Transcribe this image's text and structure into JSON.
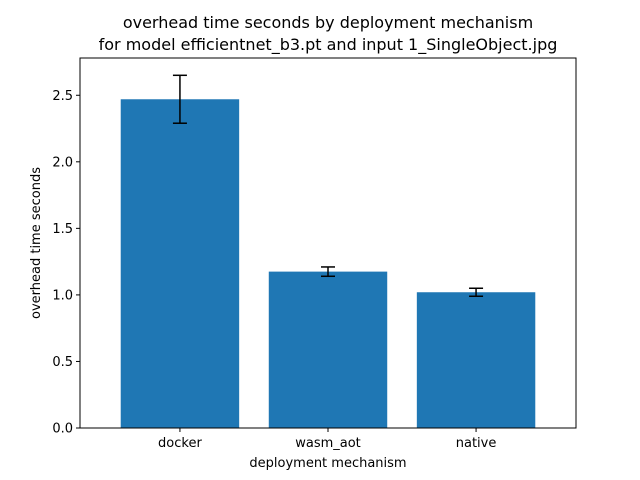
{
  "chart_data": {
    "type": "bar",
    "title_line1": "overhead time seconds by deployment mechanism",
    "title_line2": "for model efficientnet_b3.pt and input 1_SingleObject.jpg",
    "xlabel": "deployment mechanism",
    "ylabel": "overhead time seconds",
    "categories": [
      "docker",
      "wasm_aot",
      "native"
    ],
    "values": [
      2.47,
      1.175,
      1.02
    ],
    "error": [
      0.18,
      0.035,
      0.03
    ],
    "ylim": [
      0,
      2.78
    ],
    "yticks": [
      0.0,
      0.5,
      1.0,
      1.5,
      2.0,
      2.5
    ],
    "ytick_labels": [
      "0.0",
      "0.5",
      "1.0",
      "1.5",
      "2.0",
      "2.5"
    ],
    "bar_color": "#1f77b4",
    "grid": false
  }
}
